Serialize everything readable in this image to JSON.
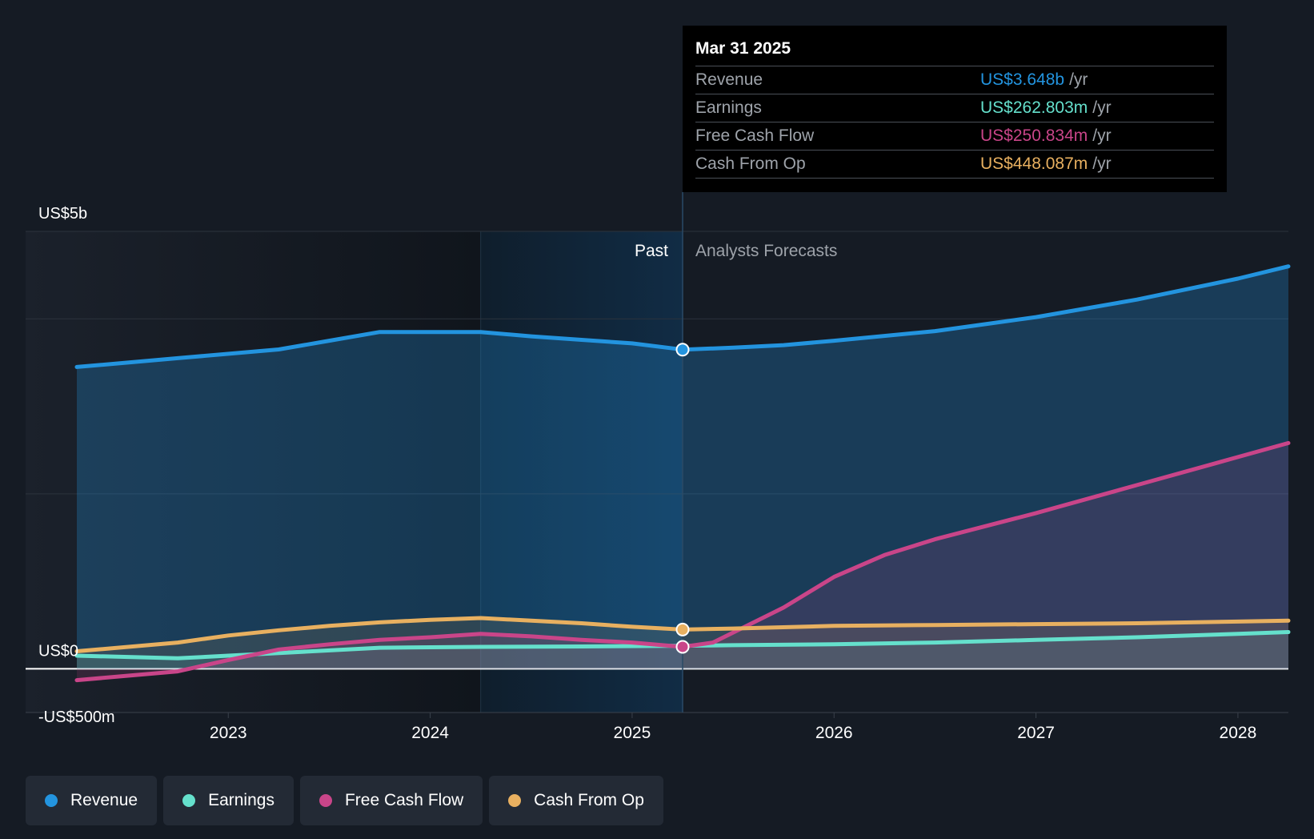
{
  "chart_data": {
    "type": "area",
    "y_axis_labels": [
      "US$5b",
      "US$0",
      "-US$500m"
    ],
    "ylim": [
      -500,
      5000
    ],
    "y_unit": "US$m",
    "xlim": [
      2022.25,
      2028.25
    ],
    "x_ticks": [
      {
        "value": 2023,
        "label": "2023"
      },
      {
        "value": 2024,
        "label": "2024"
      },
      {
        "value": 2025,
        "label": "2025"
      },
      {
        "value": 2026,
        "label": "2026"
      },
      {
        "value": 2027,
        "label": "2027"
      },
      {
        "value": 2028,
        "label": "2028"
      }
    ],
    "gridlines": [
      0,
      2000,
      4000,
      5000
    ],
    "past_label": "Past",
    "forecast_label": "Analysts Forecasts",
    "divider_x": 2025.25,
    "highlight_start_x": 2024.25,
    "series": [
      {
        "name": "Revenue",
        "color": "#2394df",
        "points": [
          [
            2022.25,
            3450
          ],
          [
            2022.75,
            3550
          ],
          [
            2023.25,
            3650
          ],
          [
            2023.5,
            3750
          ],
          [
            2023.75,
            3850
          ],
          [
            2024,
            3850
          ],
          [
            2024.25,
            3850
          ],
          [
            2024.5,
            3800
          ],
          [
            2024.75,
            3760
          ],
          [
            2025,
            3720
          ],
          [
            2025.25,
            3648
          ],
          [
            2025.5,
            3670
          ],
          [
            2025.75,
            3700
          ],
          [
            2026,
            3750
          ],
          [
            2026.5,
            3860
          ],
          [
            2027,
            4020
          ],
          [
            2027.5,
            4220
          ],
          [
            2028,
            4460
          ],
          [
            2028.25,
            4600
          ]
        ]
      },
      {
        "name": "Earnings",
        "color": "#65e0cc",
        "points": [
          [
            2022.25,
            150
          ],
          [
            2022.75,
            120
          ],
          [
            2023,
            150
          ],
          [
            2023.25,
            180
          ],
          [
            2023.75,
            240
          ],
          [
            2024.25,
            250
          ],
          [
            2024.75,
            255
          ],
          [
            2025.25,
            262.8
          ],
          [
            2025.5,
            270
          ],
          [
            2026,
            280
          ],
          [
            2026.5,
            300
          ],
          [
            2027,
            330
          ],
          [
            2027.5,
            360
          ],
          [
            2028,
            400
          ],
          [
            2028.25,
            420
          ]
        ]
      },
      {
        "name": "Free Cash Flow",
        "color": "#c94589",
        "points": [
          [
            2022.25,
            -130
          ],
          [
            2022.75,
            -30
          ],
          [
            2023,
            100
          ],
          [
            2023.25,
            220
          ],
          [
            2023.5,
            280
          ],
          [
            2023.75,
            330
          ],
          [
            2024,
            360
          ],
          [
            2024.25,
            400
          ],
          [
            2024.5,
            370
          ],
          [
            2024.75,
            330
          ],
          [
            2025,
            300
          ],
          [
            2025.25,
            250.834
          ],
          [
            2025.4,
            300
          ],
          [
            2025.75,
            700
          ],
          [
            2026,
            1050
          ],
          [
            2026.25,
            1300
          ],
          [
            2026.5,
            1480
          ],
          [
            2027,
            1780
          ],
          [
            2027.5,
            2100
          ],
          [
            2028,
            2420
          ],
          [
            2028.25,
            2580
          ]
        ]
      },
      {
        "name": "Cash From Op",
        "color": "#e8b060",
        "points": [
          [
            2022.25,
            200
          ],
          [
            2022.75,
            300
          ],
          [
            2023,
            380
          ],
          [
            2023.25,
            440
          ],
          [
            2023.5,
            490
          ],
          [
            2023.75,
            530
          ],
          [
            2024,
            560
          ],
          [
            2024.25,
            580
          ],
          [
            2024.5,
            550
          ],
          [
            2024.75,
            520
          ],
          [
            2025,
            480
          ],
          [
            2025.25,
            448.087
          ],
          [
            2025.5,
            460
          ],
          [
            2026,
            490
          ],
          [
            2026.5,
            500
          ],
          [
            2027,
            510
          ],
          [
            2027.5,
            520
          ],
          [
            2028,
            540
          ],
          [
            2028.25,
            550
          ]
        ]
      }
    ]
  },
  "tooltip": {
    "date": "Mar 31 2025",
    "unit": "/yr",
    "rows": [
      {
        "label": "Revenue",
        "value": "US$3.648b",
        "color": "#2394df"
      },
      {
        "label": "Earnings",
        "value": "US$262.803m",
        "color": "#65e0cc"
      },
      {
        "label": "Free Cash Flow",
        "value": "US$250.834m",
        "color": "#c94589"
      },
      {
        "label": "Cash From Op",
        "value": "US$448.087m",
        "color": "#e8b060"
      }
    ]
  },
  "legend": [
    {
      "label": "Revenue",
      "color": "#2394df"
    },
    {
      "label": "Earnings",
      "color": "#65e0cc"
    },
    {
      "label": "Free Cash Flow",
      "color": "#c94589"
    },
    {
      "label": "Cash From Op",
      "color": "#e8b060"
    }
  ]
}
